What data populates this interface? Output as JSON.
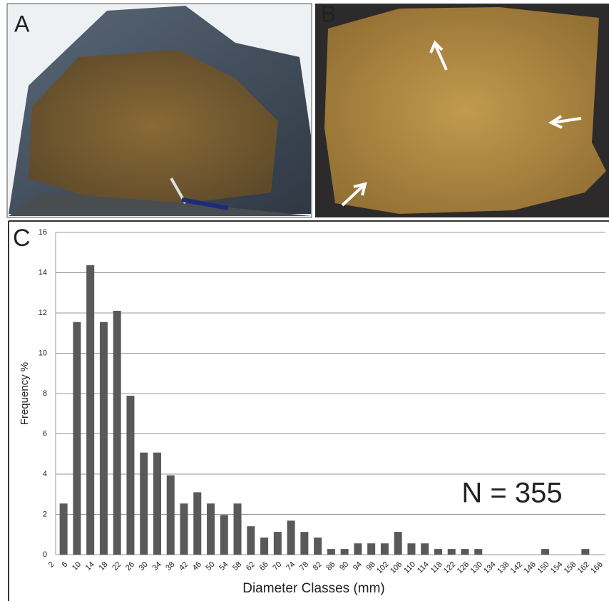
{
  "panels": {
    "a": "A",
    "b": "B",
    "c": "C"
  },
  "chart_data": {
    "type": "bar",
    "y_label": "Frequency %",
    "x_label": "Diameter Classes (mm)",
    "annotation": "N = 355",
    "categories": [
      "2",
      "6",
      "10",
      "14",
      "18",
      "22",
      "26",
      "30",
      "34",
      "38",
      "42",
      "46",
      "50",
      "54",
      "58",
      "62",
      "66",
      "70",
      "74",
      "78",
      "82",
      "86",
      "90",
      "94",
      "98",
      "102",
      "106",
      "110",
      "114",
      "118",
      "122",
      "126",
      "130",
      "134",
      "138",
      "142",
      "146",
      "150",
      "154",
      "158",
      "162",
      "166"
    ],
    "values": [
      0,
      2.54,
      11.55,
      14.37,
      11.55,
      12.11,
      7.89,
      5.07,
      5.07,
      3.94,
      2.54,
      3.1,
      2.54,
      1.97,
      2.54,
      1.41,
      0.85,
      1.13,
      1.69,
      1.13,
      0.85,
      0.28,
      0.28,
      0.56,
      0.56,
      0.56,
      1.13,
      0.56,
      0.56,
      0.28,
      0.28,
      0.28,
      0.28,
      0,
      0,
      0,
      0,
      0.28,
      0,
      0,
      0.28,
      0
    ],
    "color": "#595959",
    "ylim": [
      0,
      16
    ],
    "yticks": [
      0,
      2,
      4,
      6,
      8,
      10,
      12,
      14,
      16
    ],
    "grid": true
  }
}
